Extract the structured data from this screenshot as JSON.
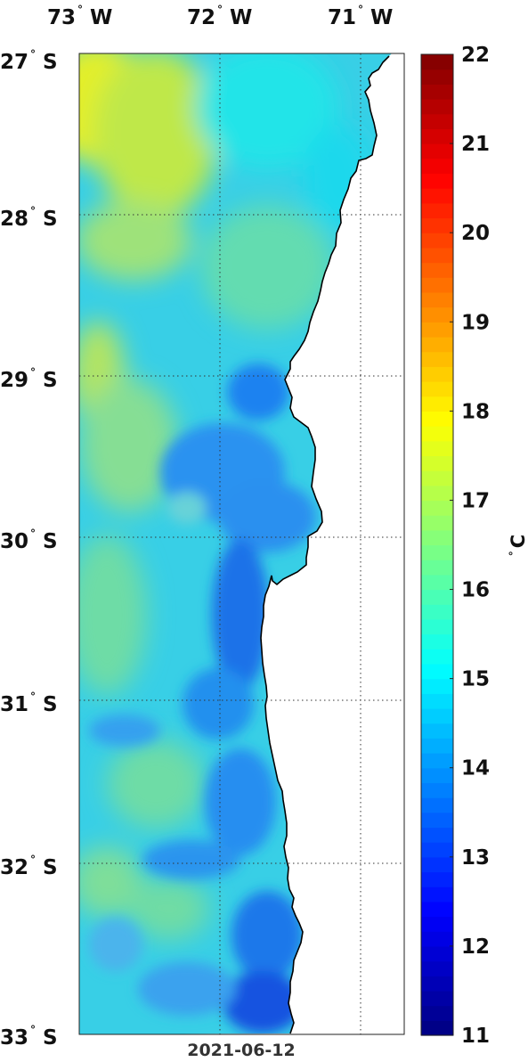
{
  "map": {
    "top_axis_labels": [
      {
        "deg": "73",
        "hem": "W"
      },
      {
        "deg": "72",
        "hem": "W"
      },
      {
        "deg": "71",
        "hem": "W"
      }
    ],
    "left_axis_labels": [
      {
        "deg": "27",
        "hem": "S"
      },
      {
        "deg": "28",
        "hem": "S"
      },
      {
        "deg": "29",
        "hem": "S"
      },
      {
        "deg": "30",
        "hem": "S"
      },
      {
        "deg": "31",
        "hem": "S"
      },
      {
        "deg": "32",
        "hem": "S"
      },
      {
        "deg": "33",
        "hem": "S"
      }
    ],
    "date": "2021-06-12",
    "lon_range": [
      -73.0,
      -70.7
    ],
    "lat_range": [
      -33.0,
      -27.0
    ],
    "grid": "dotted",
    "land_color": "#ffffff",
    "coast_color": "#000000"
  },
  "colorbar": {
    "ticks": [
      "22",
      "21",
      "20",
      "19",
      "18",
      "17",
      "16",
      "15",
      "14",
      "13",
      "12",
      "11"
    ],
    "unit_symbol": "C",
    "range": [
      11,
      22
    ],
    "colormap": "jet",
    "placement": "right"
  }
}
